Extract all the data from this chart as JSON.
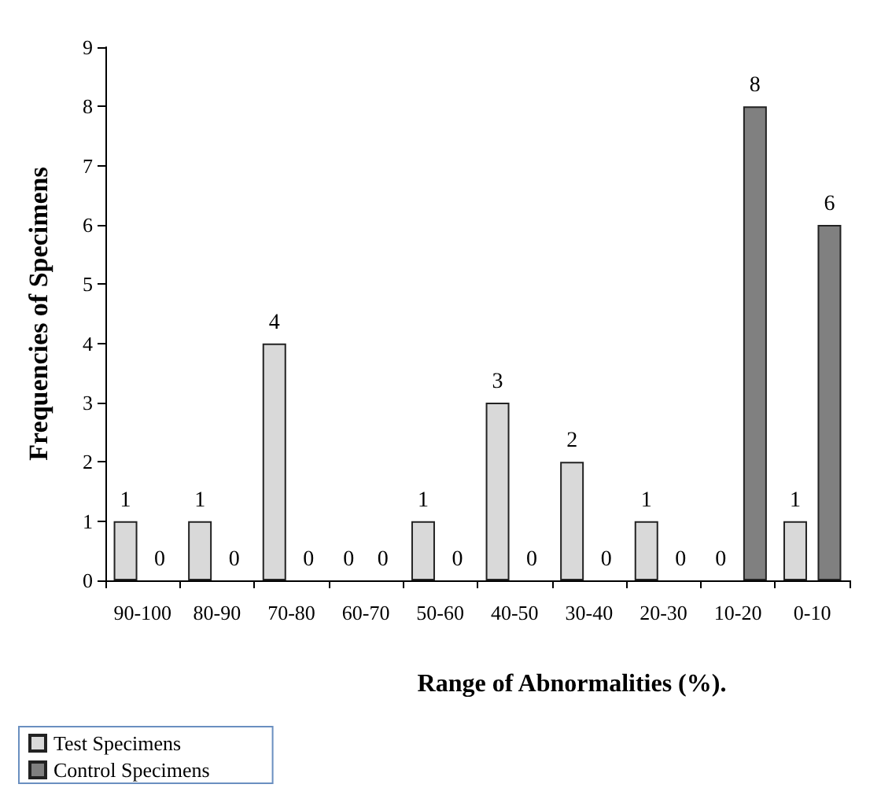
{
  "chart_data": {
    "type": "bar",
    "xlabel": "Range of Abnormalities (%).",
    "ylabel": "Frequencies of Specimens",
    "categories": [
      "90-100",
      "80-90",
      "70-80",
      "60-70",
      "50-60",
      "40-50",
      "30-40",
      "20-30",
      "10-20",
      "0-10"
    ],
    "series": [
      {
        "name": "Test Specimens",
        "color": "#d9d9d9",
        "values": [
          1,
          1,
          4,
          0,
          1,
          3,
          2,
          1,
          0,
          1
        ]
      },
      {
        "name": "Control Specimens",
        "color": "#808080",
        "values": [
          0,
          0,
          0,
          0,
          0,
          0,
          0,
          0,
          8,
          6
        ]
      }
    ],
    "ylim": [
      0,
      9
    ],
    "yticks": [
      0,
      1,
      2,
      3,
      4,
      5,
      6,
      7,
      8,
      9
    ],
    "grid": false,
    "legend": "bottom left",
    "data_labels": true
  }
}
